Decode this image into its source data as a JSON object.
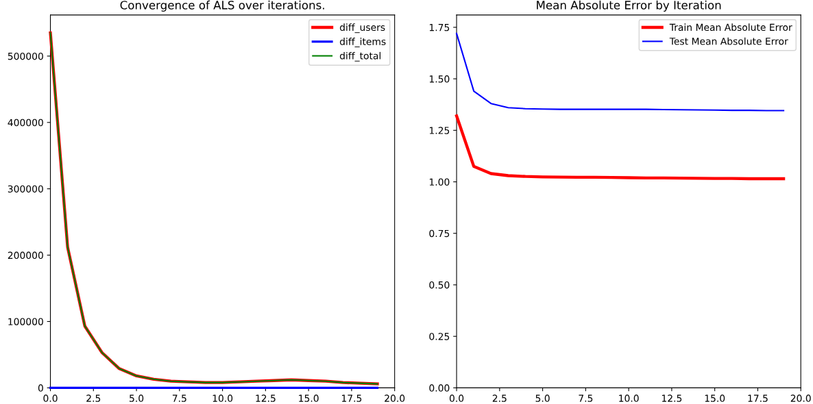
{
  "chart_data": [
    {
      "type": "line",
      "title": "Convergence of ALS over iterations.",
      "x": [
        0,
        1,
        2,
        3,
        4,
        5,
        6,
        7,
        8,
        9,
        10,
        11,
        12,
        13,
        14,
        15,
        16,
        17,
        18,
        19
      ],
      "series": [
        {
          "name": "diff_users",
          "color": "#ff0000",
          "values": [
            535000,
            212000,
            93000,
            53000,
            29000,
            18000,
            13000,
            10000,
            9000,
            8000,
            8000,
            9000,
            10000,
            11000,
            12000,
            11000,
            10000,
            8000,
            7000,
            6000
          ]
        },
        {
          "name": "diff_items",
          "color": "#0000ff",
          "values": [
            0,
            0,
            0,
            0,
            0,
            0,
            0,
            0,
            0,
            0,
            0,
            0,
            0,
            0,
            0,
            0,
            0,
            0,
            0,
            0
          ]
        },
        {
          "name": "diff_total",
          "color": "#008000",
          "values": [
            535000,
            212000,
            93000,
            53000,
            29000,
            18000,
            13000,
            10000,
            9000,
            8000,
            8000,
            9000,
            10000,
            11000,
            12000,
            11000,
            10000,
            8000,
            7000,
            6000
          ]
        }
      ],
      "xlim": [
        0,
        20
      ],
      "xticks": [
        {
          "value": 0,
          "label": "0.0"
        },
        2.5,
        {
          "value": 5,
          "label": "5.0"
        },
        7.5,
        {
          "value": 10,
          "label": "10.0"
        },
        12.5,
        {
          "value": 15,
          "label": "15.0"
        },
        17.5,
        {
          "value": 20,
          "label": "20.0"
        }
      ],
      "ylim": [
        0,
        562000
      ],
      "yticks": [
        0,
        100000,
        200000,
        300000,
        400000,
        500000
      ],
      "legend": "top right",
      "grid": false
    },
    {
      "type": "line",
      "title": "Mean Absolute Error by Iteration",
      "x": [
        0,
        1,
        2,
        3,
        4,
        5,
        6,
        7,
        8,
        9,
        10,
        11,
        12,
        13,
        14,
        15,
        16,
        17,
        18,
        19
      ],
      "series": [
        {
          "name": "Train Mean Absolute Error",
          "color": "#ff0000",
          "values": [
            1.32,
            1.075,
            1.04,
            1.03,
            1.026,
            1.024,
            1.023,
            1.022,
            1.022,
            1.021,
            1.02,
            1.019,
            1.019,
            1.018,
            1.017,
            1.016,
            1.016,
            1.015,
            1.015,
            1.015
          ]
        },
        {
          "name": "Test Mean Absolute Error",
          "color": "#0000ff",
          "values": [
            1.72,
            1.44,
            1.38,
            1.36,
            1.355,
            1.353,
            1.352,
            1.352,
            1.352,
            1.352,
            1.352,
            1.352,
            1.351,
            1.35,
            1.349,
            1.348,
            1.347,
            1.347,
            1.346,
            1.346
          ]
        }
      ],
      "xlim": [
        0,
        20
      ],
      "xticks": [
        {
          "value": 0,
          "label": "0.0"
        },
        2.5,
        {
          "value": 5,
          "label": "5.0"
        },
        7.5,
        {
          "value": 10,
          "label": "10.0"
        },
        12.5,
        {
          "value": 15,
          "label": "15.0"
        },
        17.5,
        {
          "value": 20,
          "label": "20.0"
        }
      ],
      "ylim": [
        0,
        1.81
      ],
      "yticks": [
        {
          "value": 0,
          "label": "0.00"
        },
        0.25,
        {
          "value": 0.5,
          "label": "0.50"
        },
        0.75,
        {
          "value": 1,
          "label": "1.00"
        },
        1.25,
        {
          "value": 1.5,
          "label": "1.50"
        },
        1.75
      ],
      "legend": "top right",
      "grid": false
    }
  ]
}
